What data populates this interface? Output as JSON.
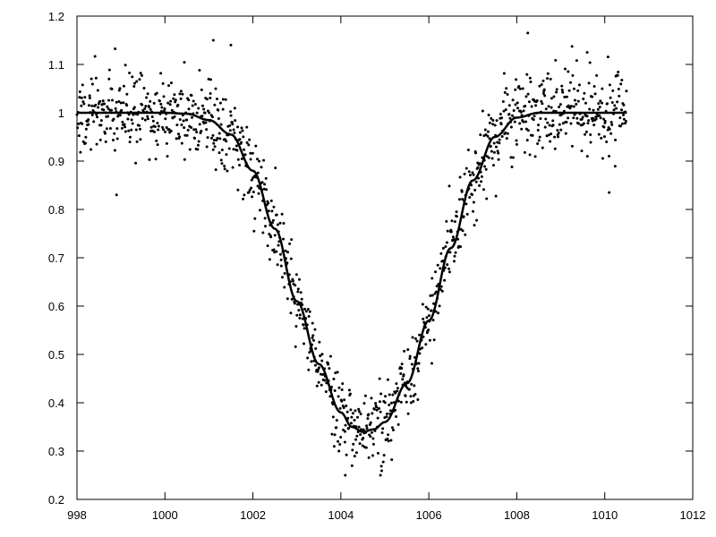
{
  "chart_data": {
    "type": "scatter",
    "title": "",
    "xlabel": "",
    "ylabel": "",
    "xlim": [
      998,
      1012
    ],
    "ylim": [
      0.2,
      1.2
    ],
    "x_ticks": [
      998,
      1000,
      1002,
      1004,
      1006,
      1008,
      1010,
      1012
    ],
    "y_ticks": [
      0.2,
      0.3,
      0.4,
      0.5,
      0.6,
      0.7,
      0.8,
      0.9,
      1,
      1.1,
      1.2
    ],
    "grid": false,
    "legend": "none",
    "x_tick_labels": [
      "998",
      "1000",
      "1002",
      "1004",
      "1006",
      "1008",
      "1010",
      "1012"
    ],
    "y_tick_labels": [
      "0.2",
      "0.3",
      "0.4",
      "0.5",
      "0.6",
      "0.7",
      "0.8",
      "0.9",
      "1",
      "1.1",
      "1.2"
    ],
    "series": [
      {
        "kind": "points",
        "x_range": [
          998,
          1010.5
        ],
        "approx_count": 1200,
        "color": "#000000",
        "noise_sd": 0.04,
        "outliers": [
          {
            "x": 1001.1,
            "y": 1.15
          },
          {
            "x": 1001.5,
            "y": 1.14
          },
          {
            "x": 1008.25,
            "y": 1.165
          },
          {
            "x": 1009.6,
            "y": 1.125
          },
          {
            "x": 1010.1,
            "y": 0.835
          },
          {
            "x": 998.9,
            "y": 0.83
          },
          {
            "x": 1004.1,
            "y": 0.25
          },
          {
            "x": 1004.9,
            "y": 0.25
          }
        ]
      },
      {
        "kind": "line",
        "color": "#000000",
        "x": [
          998,
          1000,
          1000.5,
          1001,
          1001.5,
          1002,
          1002.5,
          1003,
          1003.5,
          1004,
          1004.25,
          1004.5,
          1004.75,
          1005,
          1005.5,
          1006,
          1006.5,
          1007,
          1007.5,
          1008,
          1008.5,
          1009,
          1010.5
        ],
        "y": [
          1.0,
          1.0,
          0.998,
          0.985,
          0.955,
          0.88,
          0.76,
          0.61,
          0.48,
          0.38,
          0.35,
          0.34,
          0.345,
          0.36,
          0.44,
          0.57,
          0.72,
          0.86,
          0.95,
          0.99,
          1.0,
          1.0,
          1.0
        ]
      }
    ]
  }
}
